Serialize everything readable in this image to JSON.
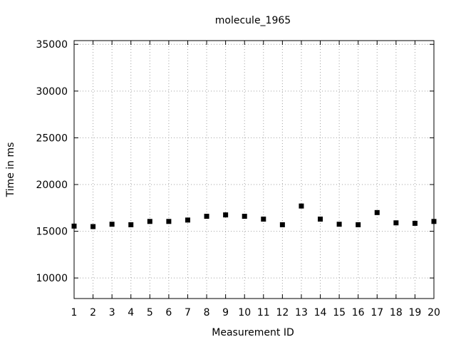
{
  "chart_data": {
    "type": "scatter",
    "title": "molecule_1965",
    "xlabel": "Measurement ID",
    "ylabel": "Time in ms",
    "x": [
      1,
      2,
      3,
      4,
      5,
      6,
      7,
      8,
      9,
      10,
      11,
      12,
      13,
      14,
      15,
      16,
      17,
      18,
      19,
      20
    ],
    "series": [
      {
        "values": [
          15550,
          15500,
          15750,
          15700,
          16050,
          16050,
          16200,
          16600,
          16750,
          16600,
          16300,
          15700,
          17700,
          16300,
          15750,
          15700,
          17000,
          15900,
          15850,
          16050
        ]
      }
    ],
    "xlim": [
      1,
      20
    ],
    "ylim": [
      7800,
      35400
    ],
    "xticks": [
      1,
      2,
      3,
      4,
      5,
      6,
      7,
      8,
      9,
      10,
      11,
      12,
      13,
      14,
      15,
      16,
      17,
      18,
      19,
      20
    ],
    "yticks": [
      10000,
      15000,
      20000,
      25000,
      30000,
      35000
    ],
    "grid": true,
    "marker": "square",
    "colors": {
      "marker": "#000000",
      "grid": "#a0a0a0",
      "axes": "#000000"
    }
  }
}
